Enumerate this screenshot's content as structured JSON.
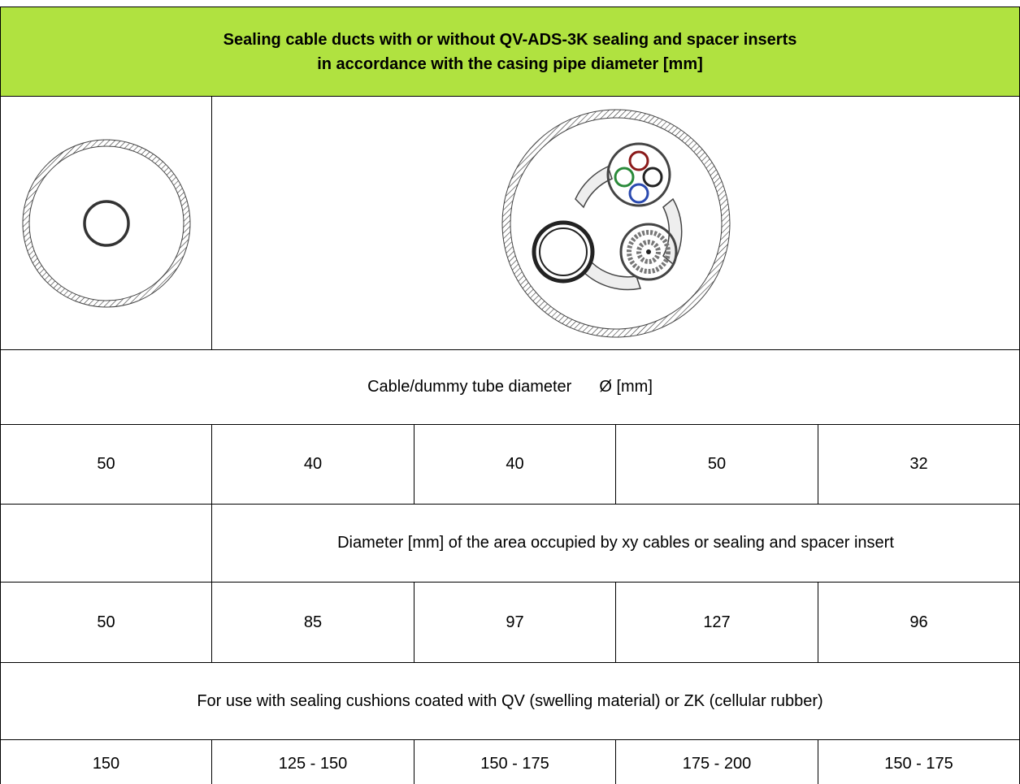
{
  "header": {
    "title_lines": [
      "Sealing cable ducts with or without QV-ADS-3K sealing and spacer inserts",
      "in accordance with the casing pipe diameter [mm]"
    ]
  },
  "table": {
    "cable_diameter_heading": {
      "label": "Cable/dummy tube diameter",
      "unit": "Ø [mm]"
    },
    "cable_diameters": [
      "50",
      "40",
      "40",
      "50",
      "32"
    ],
    "area_heading": "Diameter [mm] of the area occupied by xy cables or sealing and spacer insert",
    "area_diameters": [
      "50",
      "85",
      "97",
      "127",
      "96"
    ],
    "cushion_heading": "For use with sealing cushions coated with QV (swelling material) or ZK (cellular rubber)",
    "pipe_diameters": [
      "150",
      "125 - 150",
      "150 - 175",
      "175 - 200",
      "150 - 175"
    ]
  }
}
